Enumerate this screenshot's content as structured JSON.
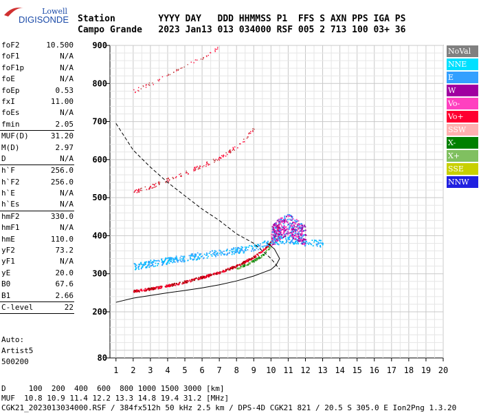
{
  "logo": {
    "line1": "Lowell",
    "line2": "DIGISONDE"
  },
  "header": {
    "row1": "Station        YYYY DAY   DDD HHMMSS P1  FFS S AXN PPS IGA PS",
    "row2": "Campo Grande   2023 Jan13 013 034000 RSF 005 2 713 100 03+ 36"
  },
  "params": {
    "group1": [
      {
        "label": "foF2",
        "value": "10.500"
      },
      {
        "label": "foF1",
        "value": "N/A"
      },
      {
        "label": "foF1p",
        "value": "N/A"
      },
      {
        "label": "foE",
        "value": "N/A"
      },
      {
        "label": "foEp",
        "value": "0.53"
      },
      {
        "label": "fxI",
        "value": "11.00"
      },
      {
        "label": "foEs",
        "value": "N/A"
      },
      {
        "label": "fmin",
        "value": "2.05"
      }
    ],
    "group2": [
      {
        "label": "MUF(D)",
        "value": "31.20"
      },
      {
        "label": "M(D)",
        "value": "2.97"
      },
      {
        "label": "D",
        "value": "N/A"
      }
    ],
    "group3": [
      {
        "label": "h`F",
        "value": "256.0"
      },
      {
        "label": "h`F2",
        "value": "256.0"
      },
      {
        "label": "h`E",
        "value": "N/A"
      },
      {
        "label": "h`Es",
        "value": "N/A"
      }
    ],
    "group4": [
      {
        "label": "hmF2",
        "value": "330.0"
      },
      {
        "label": "hmF1",
        "value": "N/A"
      },
      {
        "label": "hmE",
        "value": "110.0"
      },
      {
        "label": "yF2",
        "value": "73.2"
      },
      {
        "label": "yF1",
        "value": "N/A"
      },
      {
        "label": "yE",
        "value": "20.0"
      },
      {
        "label": "B0",
        "value": "67.6"
      },
      {
        "label": "B1",
        "value": "2.66"
      }
    ],
    "group5": [
      {
        "label": "C-level",
        "value": "22"
      }
    ]
  },
  "auto": {
    "line1": "Auto:",
    "line2": "Artist5",
    "line3": "500200"
  },
  "legend": [
    {
      "label": "NoVal",
      "color": "#808080"
    },
    {
      "label": "NNE",
      "color": "#00e0ff"
    },
    {
      "label": "E",
      "color": "#33a0ff"
    },
    {
      "label": "W",
      "color": "#a000a0"
    },
    {
      "label": "Vo-",
      "color": "#ff40c0"
    },
    {
      "label": "Vo+",
      "color": "#ff0030"
    },
    {
      "label": "SSW",
      "color": "#ffb0b0"
    },
    {
      "label": "X-",
      "color": "#008000"
    },
    {
      "label": "X+",
      "color": "#80c060"
    },
    {
      "label": "SSE",
      "color": "#c8d000"
    },
    {
      "label": "NNW",
      "color": "#2020e0"
    }
  ],
  "chart_data": {
    "type": "scatter",
    "xlabel": "",
    "ylabel": "",
    "xlim": [
      1,
      20
    ],
    "ylim": [
      80,
      900
    ],
    "x_ticks": [
      "1",
      "2",
      "3",
      "4",
      "5",
      "6",
      "7",
      "8",
      "9",
      "10",
      "11",
      "12",
      "13",
      "14",
      "15",
      "16",
      "17",
      "18",
      "19",
      "20"
    ],
    "y_ticks": [
      {
        "value": 80,
        "label": "80"
      },
      {
        "value": 200,
        "label": "200"
      },
      {
        "value": 300,
        "label": "300"
      },
      {
        "value": 400,
        "label": "400"
      },
      {
        "value": 500,
        "label": "500"
      },
      {
        "value": 600,
        "label": "600"
      },
      {
        "value": 700,
        "label": "700"
      },
      {
        "value": 800,
        "label": "800"
      },
      {
        "value": 900,
        "label": "900"
      }
    ],
    "grid": true,
    "traces": [
      {
        "mode": "O-trace F2",
        "points": [
          [
            2,
            255
          ],
          [
            3,
            262
          ],
          [
            4,
            270
          ],
          [
            5,
            280
          ],
          [
            6,
            292
          ],
          [
            7,
            305
          ],
          [
            8,
            322
          ],
          [
            9,
            345
          ],
          [
            9.5,
            362
          ],
          [
            10,
            385
          ],
          [
            10.3,
            410
          ],
          [
            10.5,
            440
          ]
        ]
      },
      {
        "mode": "X-trace F2",
        "points": [
          [
            8,
            315
          ],
          [
            9,
            335
          ],
          [
            9.5,
            350
          ],
          [
            10,
            375
          ],
          [
            10.4,
            400
          ]
        ]
      },
      {
        "mode": "2nd hop F2",
        "points": [
          [
            2,
            515
          ],
          [
            3,
            530
          ],
          [
            4,
            548
          ],
          [
            5,
            565
          ],
          [
            6,
            585
          ],
          [
            7,
            605
          ],
          [
            8,
            635
          ],
          [
            8.5,
            655
          ],
          [
            9,
            685
          ]
        ]
      },
      {
        "mode": "3rd hop F2",
        "points": [
          [
            2,
            780
          ],
          [
            3,
            800
          ],
          [
            4,
            822
          ],
          [
            5,
            845
          ],
          [
            6,
            868
          ],
          [
            7,
            895
          ]
        ]
      },
      {
        "mode": "oblique spread",
        "points": [
          [
            2,
            320
          ],
          [
            3,
            328
          ],
          [
            4,
            336
          ],
          [
            5,
            342
          ],
          [
            6,
            350
          ],
          [
            7,
            356
          ],
          [
            8,
            362
          ],
          [
            9,
            370
          ],
          [
            10,
            385
          ],
          [
            11,
            390
          ],
          [
            12,
            385
          ],
          [
            13,
            380
          ]
        ]
      },
      {
        "mode": "F2 spread",
        "points": [
          [
            10,
            400
          ],
          [
            10.5,
            420
          ],
          [
            11,
            430
          ],
          [
            11.5,
            415
          ],
          [
            12,
            400
          ]
        ]
      }
    ],
    "profile_curve": [
      [
        1,
        225
      ],
      [
        2,
        236
      ],
      [
        3,
        243
      ],
      [
        4,
        250
      ],
      [
        5,
        256
      ],
      [
        6,
        263
      ],
      [
        7,
        271
      ],
      [
        8,
        281
      ],
      [
        9,
        294
      ],
      [
        10,
        311
      ],
      [
        10.3,
        323
      ],
      [
        10.5,
        340
      ],
      [
        10.2,
        365
      ],
      [
        9.8,
        380
      ]
    ],
    "mufd_dashed_curve": [
      [
        1,
        695
      ],
      [
        2,
        625
      ],
      [
        3,
        580
      ],
      [
        4,
        540
      ],
      [
        5,
        505
      ],
      [
        6,
        470
      ],
      [
        7,
        440
      ],
      [
        8,
        405
      ],
      [
        9,
        380
      ],
      [
        10,
        340
      ],
      [
        10.5,
        312
      ]
    ]
  },
  "footer": {
    "line1": "D     100  200  400  600  800 1000 1500 3000 [km]",
    "line2": "MUF  10.8 10.9 11.4 12.2 13.3 14.8 19.4 31.2 [MHz]",
    "line3": "CGK21_2023013034000.RSF / 384fx512h 50 kHz 2.5 km / DPS-4D CGK21 821 / 20.5 S 305.0 E Ion2Png 1.3.20"
  }
}
